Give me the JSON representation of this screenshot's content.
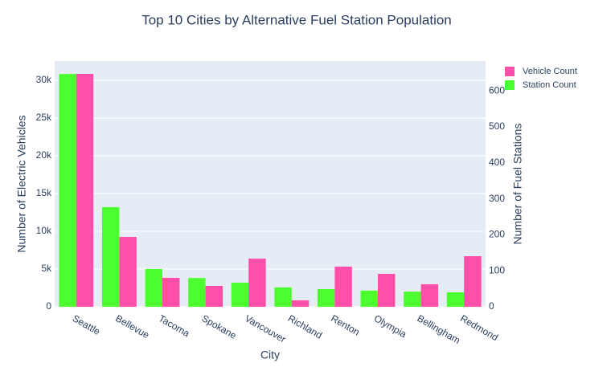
{
  "chart_data": {
    "type": "bar",
    "title": "Top 10 Cities by Alternative Fuel Station Population",
    "x_label": "City",
    "y_label": "Number of Electric Vehicles",
    "y2_label": "Number of Fuel Stations",
    "categories": [
      "Seattle",
      "Bellevue",
      "Tacoma",
      "Spokane",
      "Vancouver",
      "Richland",
      "Renton",
      "Olympia",
      "Bellingham",
      "Redmond"
    ],
    "series": [
      {
        "name": "Vehicle Count",
        "color": "#ff4fa8",
        "values": [
          30850,
          9250,
          3830,
          2770,
          6380,
          850,
          5320,
          4360,
          2980,
          6700
        ]
      },
      {
        "name": "Station Count",
        "color": "#4cff2e",
        "axis": "y2",
        "values": [
          647,
          277,
          105,
          80,
          67,
          54,
          49,
          45,
          42,
          40
        ]
      }
    ],
    "ylim": [
      0,
      32550
    ],
    "yticks": [
      0,
      {
        "value": 5000,
        "label": "5k"
      },
      {
        "value": 10000,
        "label": "10k"
      },
      {
        "value": 15000,
        "label": "15k"
      },
      {
        "value": 20000,
        "label": "20k"
      },
      {
        "value": 25000,
        "label": "25k"
      },
      {
        "value": 30000,
        "label": "30k"
      }
    ],
    "y2lim": [
      0,
      683
    ],
    "y2ticks": [
      0,
      100,
      200,
      300,
      400,
      500,
      600
    ],
    "grid": true,
    "legend": "top-right"
  }
}
